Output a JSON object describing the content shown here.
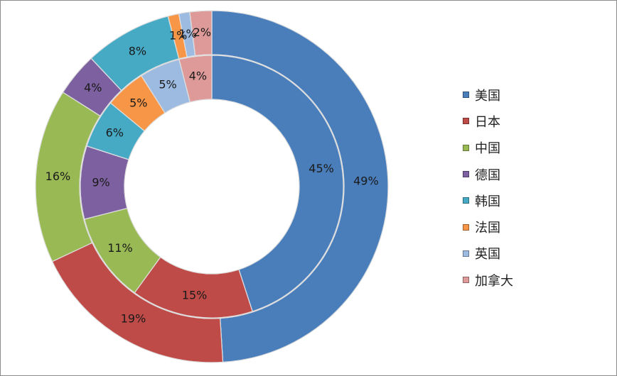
{
  "chart_data": {
    "type": "pie",
    "variant": "double-donut",
    "categories": [
      "美国",
      "日本",
      "中国",
      "德国",
      "韩国",
      "法国",
      "英国",
      "加拿大"
    ],
    "colors": [
      "#4a7ebb",
      "#be4b48",
      "#98b954",
      "#7d60a0",
      "#46aac5",
      "#f79646",
      "#9dbbe0",
      "#dd9a98"
    ],
    "series": [
      {
        "ring": "outer",
        "values": [
          49,
          19,
          16,
          4,
          8,
          1,
          1,
          2
        ],
        "labels": [
          "49%",
          "19%",
          "16%",
          "4%",
          "8%",
          "1%",
          "1%",
          "2%"
        ]
      },
      {
        "ring": "inner",
        "values": [
          45,
          15,
          11,
          9,
          6,
          5,
          5,
          4
        ],
        "labels": [
          "45%",
          "15%",
          "11%",
          "9%",
          "6%",
          "5%",
          "5%",
          "4%"
        ]
      }
    ],
    "legend_position": "right"
  }
}
